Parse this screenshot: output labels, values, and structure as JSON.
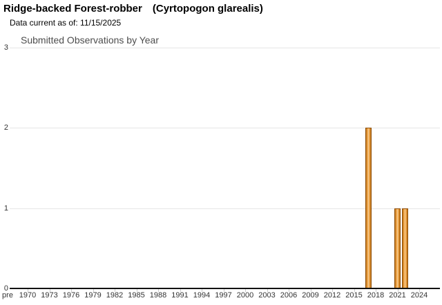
{
  "page": {
    "title_common": "Ridge-backed Forest-robber",
    "title_scientific": "(Cyrtopogon glarealis)",
    "data_current": "Data current as of: 11/15/2025"
  },
  "chart_data": {
    "type": "bar",
    "title": "Submitted Observations by Year",
    "xlabel": "",
    "ylabel": "",
    "ylim": [
      0,
      3
    ],
    "yticks": [
      0,
      1,
      2,
      3
    ],
    "grid": "horizontal",
    "legend": "none",
    "x_axis": {
      "pre_label": "pre",
      "tick_years": [
        1970,
        1973,
        1976,
        1979,
        1982,
        1985,
        1988,
        1991,
        1994,
        1997,
        2000,
        2003,
        2006,
        2009,
        2012,
        2015,
        2018,
        2021,
        2024
      ]
    },
    "series": [
      {
        "name": "Submitted Observations",
        "points": [
          {
            "year": 2017,
            "value": 2
          },
          {
            "year": 2021,
            "value": 1
          },
          {
            "year": 2022,
            "value": 1
          }
        ]
      }
    ],
    "colors": {
      "bar_fill_main": "#e5953a",
      "bar_fill_highlight": "#f7d09e",
      "bar_fill_edge": "#b06a16",
      "bar_border": "#8f4e08",
      "gridline": "#e6e6e6",
      "axis_line": "#111111",
      "chart_title_color": "#4d4d4d",
      "tick_label_color": "#333333"
    }
  }
}
